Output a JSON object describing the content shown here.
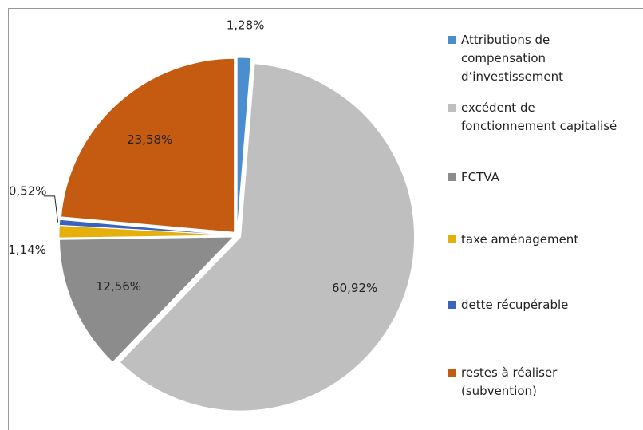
{
  "chart_data": {
    "type": "pie",
    "categories": [
      "Attributions de compensation d’investissement",
      "excédent de fonctionnement capitalisé",
      "FCTVA",
      "taxe aménagement",
      "dette récupérable",
      "restes à réaliser (subvention)"
    ],
    "values": [
      1.28,
      60.92,
      12.56,
      1.14,
      0.52,
      23.58
    ],
    "value_labels": [
      "1,28%",
      "60,92%",
      "12,56%",
      "1,14%",
      "0,52%",
      "23,58%"
    ],
    "colors": [
      "#4a8ed0",
      "#bfbfbf",
      "#8c8c8c",
      "#e6b00c",
      "#3a62c0",
      "#c55a11"
    ],
    "legend": "right"
  }
}
